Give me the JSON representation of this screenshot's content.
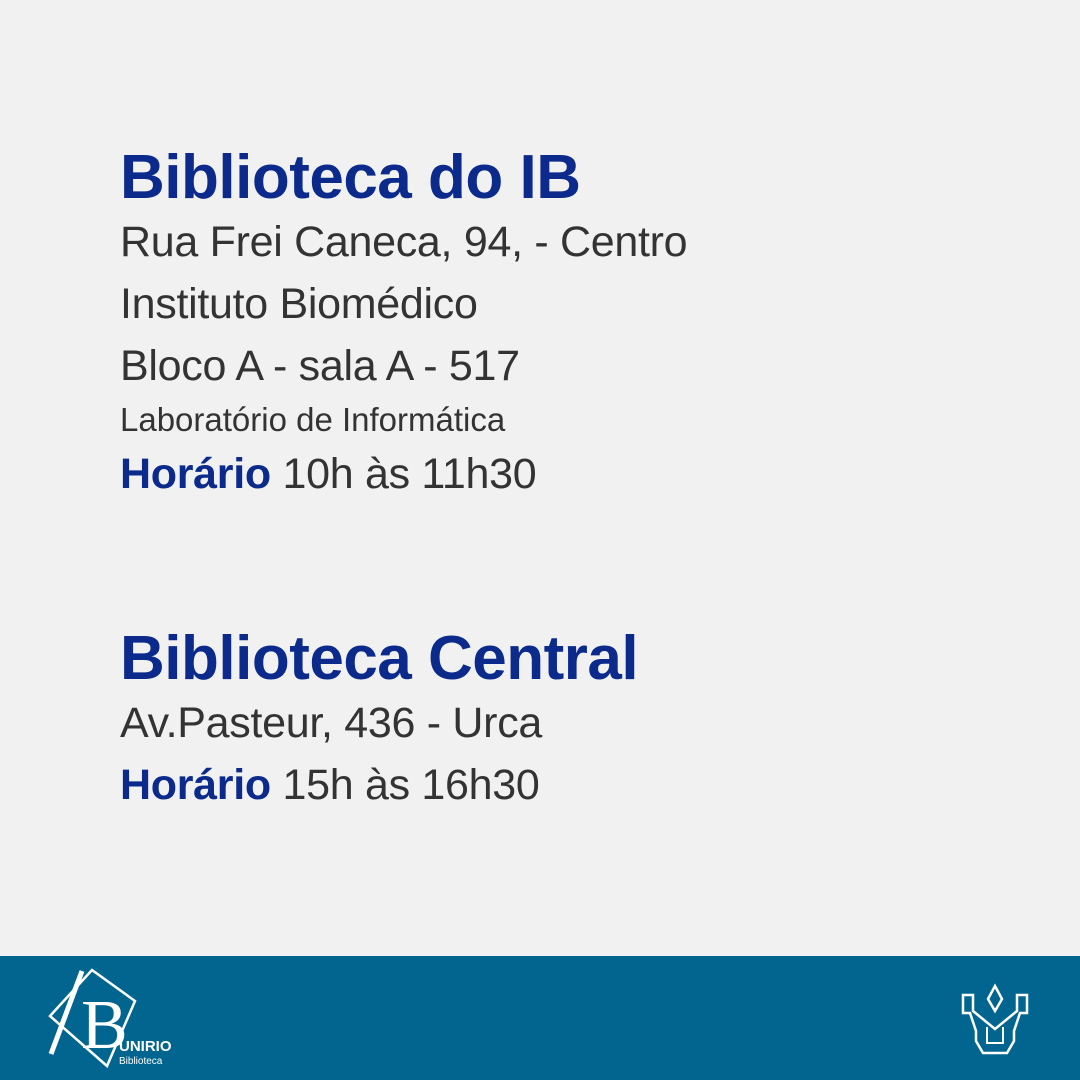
{
  "sections": [
    {
      "title": "Biblioteca do IB",
      "lines": [
        "Rua Frei Caneca, 94, - Centro",
        "Instituto Biomédico",
        "Bloco A - sala A - 517"
      ],
      "note": "Laboratório de Informática",
      "hours_label": "Horário",
      "hours_value": "10h às 11h30"
    },
    {
      "title": "Biblioteca Central",
      "lines": [
        "Av.Pasteur, 436 - Urca"
      ],
      "hours_label": "Horário",
      "hours_value": "15h às 16h30"
    }
  ],
  "footer": {
    "logo_left_text": "UNIRIO",
    "logo_left_subtext": "Biblioteca",
    "logo_right": "unirio-emblem"
  },
  "colors": {
    "background": "#f1f1f1",
    "accent": "#0b2a8c",
    "text": "#333333",
    "footer": "#02658f"
  }
}
